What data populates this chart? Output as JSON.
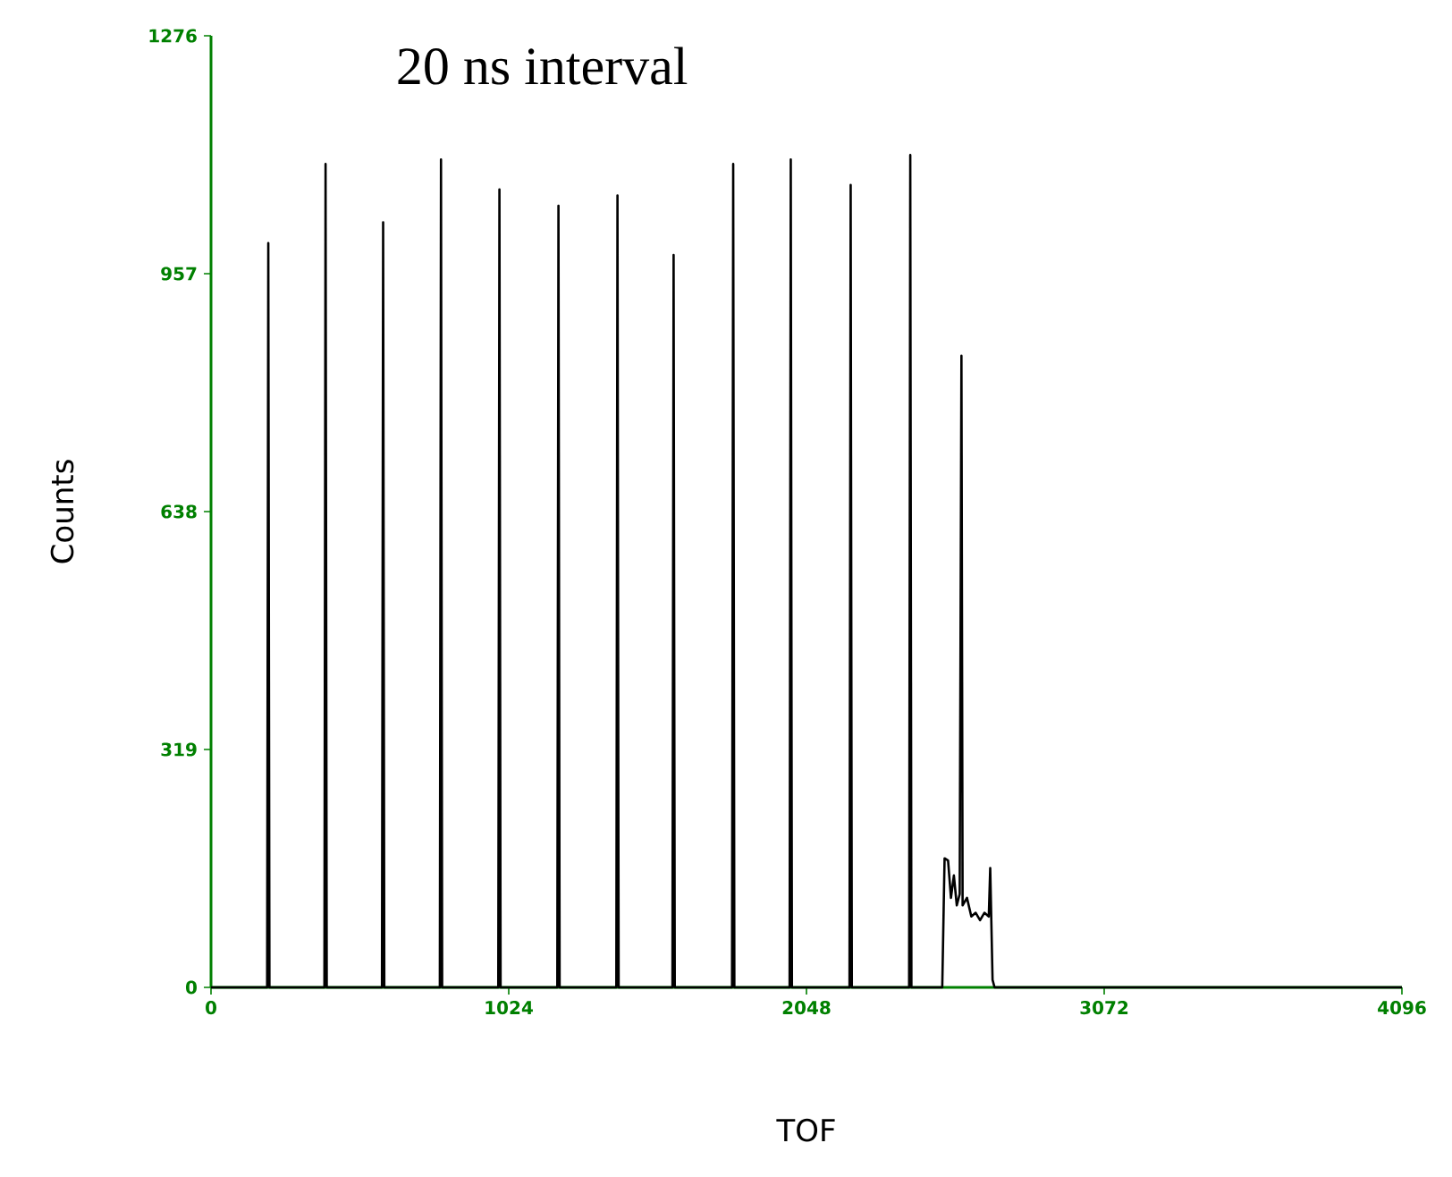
{
  "chart_data": {
    "type": "line",
    "xlabel": "TOF",
    "ylabel": "Counts",
    "annotations": [
      "20 ns interval"
    ],
    "series": [
      {
        "color": "#000000",
        "x": [
          0,
          193,
          197,
          201,
          390,
          394,
          398,
          588,
          592,
          596,
          787,
          791,
          795,
          988,
          992,
          996,
          1191,
          1195,
          1199,
          1394,
          1398,
          1402,
          1587,
          1591,
          1595,
          1792,
          1796,
          1800,
          1990,
          1994,
          1998,
          2196,
          2200,
          2204,
          2401,
          2405,
          2409,
          2515,
          2523,
          2535,
          2545,
          2555,
          2565,
          2575,
          2581,
          2585,
          2600,
          2615,
          2630,
          2645,
          2660,
          2675,
          2680,
          2688,
          2695,
          4096
        ],
        "values": [
          0,
          0,
          998,
          0,
          0,
          1104,
          0,
          0,
          1026,
          0,
          0,
          1110,
          0,
          0,
          1070,
          0,
          0,
          1048,
          0,
          0,
          1062,
          0,
          0,
          982,
          0,
          0,
          1104,
          0,
          0,
          1110,
          0,
          0,
          1076,
          0,
          0,
          1116,
          0,
          0,
          173,
          170,
          120,
          150,
          110,
          125,
          847,
          110,
          120,
          95,
          100,
          90,
          100,
          95,
          160,
          10,
          0,
          0
        ]
      }
    ],
    "xlim": [
      0,
      4096
    ],
    "ylim": [
      0,
      1276
    ],
    "xticks": [
      0,
      1024,
      2048,
      3072,
      4096
    ],
    "yticks": [
      0,
      319,
      638,
      957,
      1276
    ],
    "grid": false,
    "marker": "none",
    "line_style": "solid"
  }
}
